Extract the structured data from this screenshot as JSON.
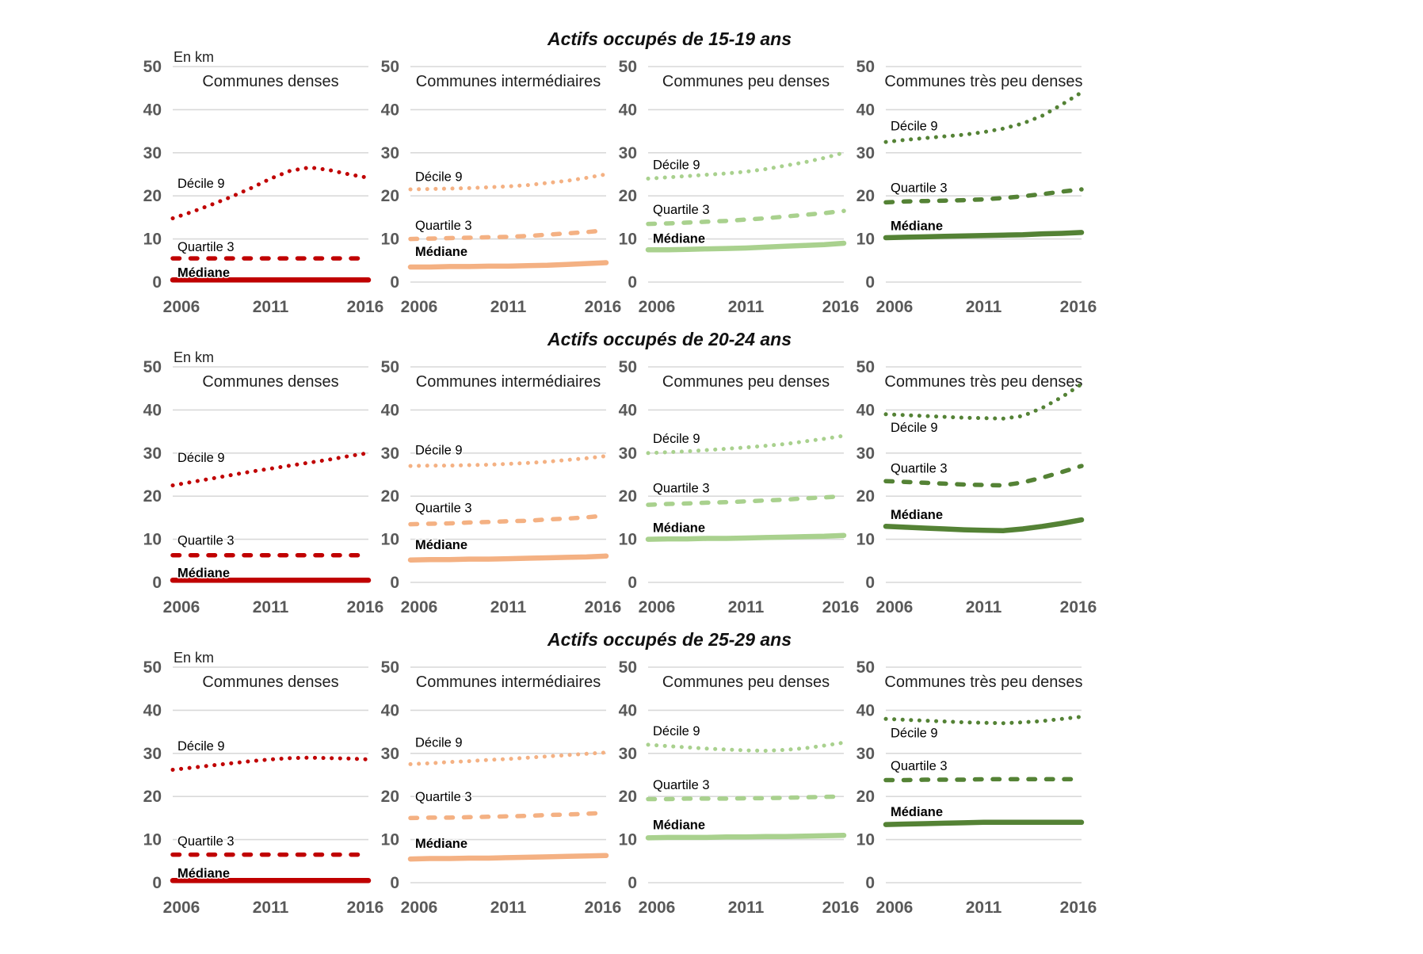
{
  "colors": {
    "communes_denses": "#C00000",
    "communes_intermediaires": "#F4B183",
    "communes_peu_denses": "#A9D18E",
    "communes_tres_peu_denses": "#548235",
    "gridline": "#D9D9D9",
    "axis_text": "#595959"
  },
  "chart_data": [
    {
      "type": "line",
      "title": "Actifs occupés de 15-19 ans",
      "ylabel": "En km",
      "xlabel": "",
      "ylim": [
        0,
        50
      ],
      "yticks": [
        0,
        10,
        20,
        30,
        40,
        50
      ],
      "xticks": [
        2006,
        2011,
        2016
      ],
      "x": [
        2006,
        2007,
        2008,
        2009,
        2010,
        2011,
        2012,
        2013,
        2014,
        2015,
        2016
      ],
      "grid": "horizontal",
      "legend_position": "inline-labels",
      "panels": [
        {
          "title": "Communes denses",
          "color": "#C00000",
          "series": [
            {
              "name": "Décile 9",
              "style": "dotted",
              "label_y": 23,
              "values": [
                14.8,
                16.3,
                18.0,
                19.8,
                21.8,
                24.0,
                25.8,
                26.6,
                26.0,
                25.0,
                24.2
              ]
            },
            {
              "name": "Quartile 3",
              "style": "dashed",
              "label_y": 8.3,
              "values": [
                5.5,
                5.5,
                5.5,
                5.5,
                5.5,
                5.5,
                5.5,
                5.5,
                5.5,
                5.5,
                5.5
              ]
            },
            {
              "name": "Médiane",
              "style": "solid",
              "label_y": 2.3,
              "values": [
                0.5,
                0.5,
                0.5,
                0.5,
                0.5,
                0.5,
                0.5,
                0.5,
                0.5,
                0.5,
                0.5
              ]
            }
          ]
        },
        {
          "title": "Communes intermédiaires",
          "color": "#F4B183",
          "series": [
            {
              "name": "Décile 9",
              "style": "dotted",
              "label_y": 24.5,
              "values": [
                21.5,
                21.6,
                21.7,
                21.8,
                22.0,
                22.2,
                22.5,
                23.0,
                23.5,
                24.2,
                25.0
              ]
            },
            {
              "name": "Quartile 3",
              "style": "dashed",
              "label_y": 13.2,
              "values": [
                10.0,
                10.1,
                10.2,
                10.3,
                10.4,
                10.5,
                10.7,
                11.0,
                11.3,
                11.6,
                12.0
              ]
            },
            {
              "name": "Médiane",
              "style": "solid",
              "label_y": 7.2,
              "values": [
                3.5,
                3.5,
                3.6,
                3.6,
                3.7,
                3.7,
                3.8,
                3.9,
                4.1,
                4.3,
                4.5
              ]
            }
          ]
        },
        {
          "title": "Communes peu denses",
          "color": "#A9D18E",
          "series": [
            {
              "name": "Décile 9",
              "style": "dotted",
              "label_y": 27.3,
              "values": [
                24.0,
                24.3,
                24.6,
                24.9,
                25.2,
                25.6,
                26.2,
                27.0,
                27.8,
                28.8,
                30.0
              ]
            },
            {
              "name": "Quartile 3",
              "style": "dashed",
              "label_y": 16.9,
              "values": [
                13.5,
                13.6,
                13.8,
                14.0,
                14.2,
                14.5,
                14.8,
                15.2,
                15.6,
                16.0,
                16.5
              ]
            },
            {
              "name": "Médiane",
              "style": "solid",
              "label_y": 10.2,
              "values": [
                7.5,
                7.5,
                7.6,
                7.7,
                7.8,
                7.9,
                8.1,
                8.3,
                8.5,
                8.7,
                9.0
              ]
            }
          ]
        },
        {
          "title": "Communes très peu denses",
          "color": "#548235",
          "series": [
            {
              "name": "Décile 9",
              "style": "dotted",
              "label_y": 36.3,
              "values": [
                32.5,
                33.0,
                33.4,
                33.8,
                34.2,
                34.8,
                35.6,
                36.8,
                38.6,
                41.2,
                44.0
              ]
            },
            {
              "name": "Quartile 3",
              "style": "dashed",
              "label_y": 22.0,
              "values": [
                18.5,
                18.7,
                18.8,
                18.9,
                19.0,
                19.2,
                19.5,
                19.9,
                20.4,
                21.0,
                21.5
              ]
            },
            {
              "name": "Médiane",
              "style": "solid",
              "label_y": 13.1,
              "values": [
                10.3,
                10.4,
                10.5,
                10.6,
                10.7,
                10.8,
                10.9,
                11.0,
                11.2,
                11.3,
                11.5
              ]
            }
          ]
        }
      ]
    },
    {
      "type": "line",
      "title": "Actifs occupés de 20-24 ans",
      "ylabel": "En km",
      "xlabel": "",
      "ylim": [
        0,
        50
      ],
      "yticks": [
        0,
        10,
        20,
        30,
        40,
        50
      ],
      "xticks": [
        2006,
        2011,
        2016
      ],
      "x": [
        2006,
        2007,
        2008,
        2009,
        2010,
        2011,
        2012,
        2013,
        2014,
        2015,
        2016
      ],
      "grid": "horizontal",
      "legend_position": "inline-labels",
      "panels": [
        {
          "title": "Communes denses",
          "color": "#C00000",
          "series": [
            {
              "name": "Décile 9",
              "style": "dotted",
              "label_y": 29.0,
              "values": [
                22.5,
                23.3,
                24.1,
                24.9,
                25.7,
                26.4,
                27.1,
                27.8,
                28.5,
                29.3,
                30.0
              ]
            },
            {
              "name": "Quartile 3",
              "style": "dashed",
              "label_y": 9.8,
              "values": [
                6.3,
                6.3,
                6.3,
                6.3,
                6.3,
                6.3,
                6.3,
                6.3,
                6.3,
                6.3,
                6.3
              ]
            },
            {
              "name": "Médiane",
              "style": "solid",
              "label_y": 2.3,
              "values": [
                0.5,
                0.5,
                0.5,
                0.5,
                0.5,
                0.5,
                0.5,
                0.5,
                0.5,
                0.5,
                0.5
              ]
            }
          ]
        },
        {
          "title": "Communes intermédiaires",
          "color": "#F4B183",
          "series": [
            {
              "name": "Décile 9",
              "style": "dotted",
              "label_y": 30.8,
              "values": [
                27.0,
                27.1,
                27.1,
                27.2,
                27.3,
                27.5,
                27.7,
                28.0,
                28.4,
                28.8,
                29.3
              ]
            },
            {
              "name": "Quartile 3",
              "style": "dashed",
              "label_y": 17.4,
              "values": [
                13.5,
                13.6,
                13.7,
                13.9,
                14.0,
                14.2,
                14.3,
                14.6,
                14.8,
                15.1,
                15.5
              ]
            },
            {
              "name": "Médiane",
              "style": "solid",
              "label_y": 8.8,
              "values": [
                5.2,
                5.3,
                5.3,
                5.4,
                5.4,
                5.5,
                5.6,
                5.7,
                5.8,
                5.9,
                6.1
              ]
            }
          ]
        },
        {
          "title": "Communes peu denses",
          "color": "#A9D18E",
          "series": [
            {
              "name": "Décile 9",
              "style": "dotted",
              "label_y": 33.5,
              "values": [
                30.0,
                30.2,
                30.4,
                30.7,
                31.0,
                31.3,
                31.7,
                32.1,
                32.7,
                33.3,
                34.0
              ]
            },
            {
              "name": "Quartile 3",
              "style": "dashed",
              "label_y": 22.0,
              "values": [
                18.0,
                18.2,
                18.3,
                18.5,
                18.6,
                18.8,
                19.0,
                19.2,
                19.5,
                19.7,
                20.0
              ]
            },
            {
              "name": "Médiane",
              "style": "solid",
              "label_y": 12.8,
              "values": [
                10.0,
                10.1,
                10.1,
                10.2,
                10.2,
                10.3,
                10.4,
                10.5,
                10.6,
                10.7,
                10.9
              ]
            }
          ]
        },
        {
          "title": "Communes très peu denses",
          "color": "#548235",
          "series": [
            {
              "name": "Décile 9",
              "style": "dotted",
              "label_y": 36.0,
              "values": [
                39.0,
                38.8,
                38.6,
                38.4,
                38.2,
                38.1,
                38.0,
                38.6,
                40.5,
                43.0,
                46.0
              ]
            },
            {
              "name": "Quartile 3",
              "style": "dashed",
              "label_y": 26.6,
              "values": [
                23.5,
                23.3,
                23.1,
                22.9,
                22.7,
                22.6,
                22.5,
                23.2,
                24.3,
                25.6,
                27.0
              ]
            },
            {
              "name": "Médiane",
              "style": "solid",
              "label_y": 15.8,
              "values": [
                13.0,
                12.8,
                12.6,
                12.4,
                12.2,
                12.1,
                12.0,
                12.4,
                13.0,
                13.7,
                14.5
              ]
            }
          ]
        }
      ]
    },
    {
      "type": "line",
      "title": "Actifs occupés de 25-29 ans",
      "ylabel": "En km",
      "xlabel": "",
      "ylim": [
        0,
        50
      ],
      "yticks": [
        0,
        10,
        20,
        30,
        40,
        50
      ],
      "xticks": [
        2006,
        2011,
        2016
      ],
      "x": [
        2006,
        2007,
        2008,
        2009,
        2010,
        2011,
        2012,
        2013,
        2014,
        2015,
        2016
      ],
      "grid": "horizontal",
      "legend_position": "inline-labels",
      "panels": [
        {
          "title": "Communes denses",
          "color": "#C00000",
          "series": [
            {
              "name": "Décile 9",
              "style": "dotted",
              "label_y": 31.8,
              "values": [
                26.2,
                26.7,
                27.2,
                27.7,
                28.2,
                28.6,
                28.9,
                29.0,
                28.9,
                28.8,
                28.6
              ]
            },
            {
              "name": "Quartile 3",
              "style": "dashed",
              "label_y": 9.7,
              "values": [
                6.5,
                6.5,
                6.5,
                6.5,
                6.5,
                6.5,
                6.5,
                6.5,
                6.5,
                6.5,
                6.5
              ]
            },
            {
              "name": "Médiane",
              "style": "solid",
              "label_y": 2.3,
              "values": [
                0.5,
                0.5,
                0.5,
                0.5,
                0.5,
                0.5,
                0.5,
                0.5,
                0.5,
                0.5,
                0.5
              ]
            }
          ]
        },
        {
          "title": "Communes intermédiaires",
          "color": "#F4B183",
          "series": [
            {
              "name": "Décile 9",
              "style": "dotted",
              "label_y": 32.6,
              "values": [
                27.5,
                27.7,
                28.0,
                28.2,
                28.5,
                28.7,
                29.0,
                29.3,
                29.6,
                29.9,
                30.2
              ]
            },
            {
              "name": "Quartile 3",
              "style": "dashed",
              "label_y": 20.0,
              "values": [
                15.0,
                15.1,
                15.1,
                15.2,
                15.3,
                15.4,
                15.5,
                15.7,
                15.8,
                16.0,
                16.2
              ]
            },
            {
              "name": "Médiane",
              "style": "solid",
              "label_y": 9.2,
              "values": [
                5.5,
                5.6,
                5.6,
                5.7,
                5.7,
                5.8,
                5.9,
                6.0,
                6.1,
                6.2,
                6.3
              ]
            }
          ]
        },
        {
          "title": "Communes peu denses",
          "color": "#A9D18E",
          "series": [
            {
              "name": "Décile 9",
              "style": "dotted",
              "label_y": 35.3,
              "values": [
                32.0,
                31.7,
                31.4,
                31.1,
                30.9,
                30.7,
                30.6,
                30.8,
                31.2,
                31.8,
                32.5
              ]
            },
            {
              "name": "Quartile 3",
              "style": "dashed",
              "label_y": 22.8,
              "values": [
                19.4,
                19.4,
                19.5,
                19.5,
                19.5,
                19.6,
                19.6,
                19.7,
                19.8,
                19.9,
                20.0
              ]
            },
            {
              "name": "Médiane",
              "style": "solid",
              "label_y": 13.5,
              "values": [
                10.4,
                10.5,
                10.5,
                10.5,
                10.6,
                10.6,
                10.7,
                10.7,
                10.8,
                10.9,
                11.0
              ]
            }
          ]
        },
        {
          "title": "Communes très peu denses",
          "color": "#548235",
          "series": [
            {
              "name": "Décile 9",
              "style": "dotted",
              "label_y": 34.8,
              "values": [
                38.0,
                37.8,
                37.6,
                37.4,
                37.2,
                37.1,
                37.0,
                37.2,
                37.5,
                38.0,
                38.5
              ]
            },
            {
              "name": "Quartile 3",
              "style": "dashed",
              "label_y": 27.2,
              "values": [
                23.8,
                23.8,
                23.9,
                23.9,
                23.9,
                24.0,
                24.0,
                24.0,
                24.0,
                24.0,
                24.0
              ]
            },
            {
              "name": "Médiane",
              "style": "solid",
              "label_y": 16.5,
              "values": [
                13.5,
                13.6,
                13.7,
                13.8,
                13.9,
                14.0,
                14.0,
                14.0,
                14.0,
                14.0,
                14.0
              ]
            }
          ]
        }
      ]
    }
  ]
}
